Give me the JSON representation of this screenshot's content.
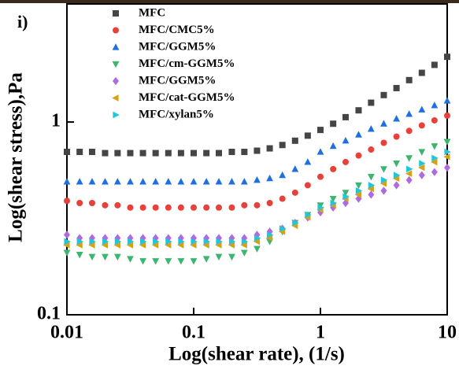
{
  "chart_data": {
    "type": "scatter",
    "panel_label": "i)",
    "x_label": "Log(shear rate), (1/s)",
    "y_label": "Log(shear stress),Pa",
    "xscale": "log",
    "yscale": "log",
    "xlim": [
      0.01,
      10
    ],
    "ylim": [
      0.1,
      4.1
    ],
    "xticks": [
      0.01,
      0.1,
      1,
      10
    ],
    "yticks": [
      0.1,
      1
    ],
    "x": [
      0.01,
      0.0126,
      0.0158,
      0.02,
      0.0251,
      0.0316,
      0.0398,
      0.0501,
      0.0631,
      0.0794,
      0.1,
      0.126,
      0.158,
      0.2,
      0.251,
      0.316,
      0.398,
      0.501,
      0.631,
      0.794,
      1,
      1.26,
      1.58,
      2,
      2.51,
      3.16,
      3.98,
      5.01,
      6.31,
      7.94,
      10
    ],
    "series": [
      {
        "name": "MFC",
        "color": "#454545",
        "marker": "square",
        "values": [
          0.7,
          0.7,
          0.7,
          0.69,
          0.69,
          0.69,
          0.69,
          0.69,
          0.69,
          0.69,
          0.69,
          0.69,
          0.69,
          0.7,
          0.7,
          0.71,
          0.73,
          0.76,
          0.8,
          0.85,
          0.91,
          0.98,
          1.06,
          1.15,
          1.26,
          1.38,
          1.5,
          1.65,
          1.8,
          1.98,
          2.18
        ]
      },
      {
        "name": "MFC/CMC5%",
        "color": "#e8403a",
        "marker": "circle",
        "values": [
          0.39,
          0.38,
          0.38,
          0.37,
          0.37,
          0.36,
          0.36,
          0.36,
          0.36,
          0.36,
          0.36,
          0.36,
          0.36,
          0.36,
          0.37,
          0.37,
          0.38,
          0.4,
          0.43,
          0.47,
          0.52,
          0.57,
          0.62,
          0.67,
          0.72,
          0.78,
          0.84,
          0.9,
          0.96,
          1.02,
          1.08
        ]
      },
      {
        "name": "MFC/GGM5%",
        "color": "#1f6fe0",
        "marker": "triangle-up",
        "values": [
          0.49,
          0.49,
          0.49,
          0.49,
          0.49,
          0.49,
          0.49,
          0.49,
          0.49,
          0.49,
          0.49,
          0.49,
          0.49,
          0.49,
          0.49,
          0.5,
          0.51,
          0.53,
          0.57,
          0.62,
          0.7,
          0.75,
          0.8,
          0.86,
          0.92,
          0.98,
          1.04,
          1.1,
          1.16,
          1.22,
          1.29
        ]
      },
      {
        "name": "MFC/cm-GGM5%",
        "color": "#3cb56e",
        "marker": "triangle-down",
        "values": [
          0.21,
          0.205,
          0.2,
          0.2,
          0.2,
          0.195,
          0.19,
          0.19,
          0.19,
          0.19,
          0.19,
          0.195,
          0.2,
          0.2,
          0.21,
          0.22,
          0.24,
          0.27,
          0.3,
          0.33,
          0.37,
          0.4,
          0.43,
          0.47,
          0.52,
          0.57,
          0.61,
          0.65,
          0.7,
          0.75,
          0.79
        ]
      },
      {
        "name": "MFC/GGM5%",
        "color": "#b06ae0",
        "marker": "diamond",
        "values": [
          0.26,
          0.25,
          0.25,
          0.25,
          0.25,
          0.25,
          0.25,
          0.25,
          0.25,
          0.25,
          0.25,
          0.25,
          0.25,
          0.25,
          0.25,
          0.26,
          0.27,
          0.28,
          0.3,
          0.32,
          0.34,
          0.36,
          0.38,
          0.4,
          0.42,
          0.44,
          0.47,
          0.5,
          0.53,
          0.55,
          0.58
        ]
      },
      {
        "name": "MFC/cat-GGM5%",
        "color": "#d4a21a",
        "marker": "triangle-left",
        "values": [
          0.23,
          0.23,
          0.23,
          0.23,
          0.23,
          0.23,
          0.23,
          0.23,
          0.23,
          0.23,
          0.23,
          0.23,
          0.23,
          0.23,
          0.23,
          0.24,
          0.25,
          0.27,
          0.29,
          0.32,
          0.35,
          0.37,
          0.4,
          0.42,
          0.45,
          0.48,
          0.51,
          0.54,
          0.58,
          0.62,
          0.66
        ]
      },
      {
        "name": "MFC/xylan5%",
        "color": "#22c6d8",
        "marker": "triangle-right",
        "values": [
          0.24,
          0.24,
          0.24,
          0.24,
          0.24,
          0.24,
          0.24,
          0.24,
          0.24,
          0.24,
          0.24,
          0.24,
          0.24,
          0.24,
          0.24,
          0.25,
          0.26,
          0.28,
          0.3,
          0.33,
          0.36,
          0.38,
          0.41,
          0.44,
          0.47,
          0.5,
          0.53,
          0.57,
          0.61,
          0.65,
          0.7
        ]
      }
    ]
  }
}
